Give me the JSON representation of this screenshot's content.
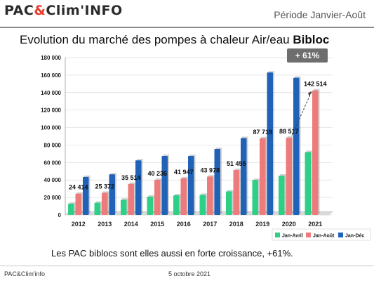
{
  "header": {
    "logo_part1": "PAC",
    "logo_amp": "&",
    "logo_part2": "Clim'INFO",
    "period": "Période Janvier-Août"
  },
  "slide": {
    "title_main": "Evolution du marché des pompes à chaleur Air/eau ",
    "title_bold": "Bibloc",
    "badge": "+ 61%",
    "caption": "Les PAC biblocs sont elles aussi en forte croissance, +61%."
  },
  "footer": {
    "left": "PAC&Clim'info",
    "date": "5 octobre 2021"
  },
  "colors": {
    "jan_avril": "#2ecf86",
    "jan_aout": "#ee7b7b",
    "jan_dec": "#1f62b8",
    "badge_bg": "#6e6e6e"
  },
  "chart_data": {
    "type": "bar",
    "title": "",
    "xlabel": "",
    "ylabel": "",
    "ylim": [
      0,
      180000
    ],
    "y_ticks": [
      "0",
      "20 000",
      "40 000",
      "60 000",
      "80 000",
      "100 000",
      "120 000",
      "140 000",
      "160 000",
      "180 000"
    ],
    "y_tick_values": [
      0,
      20000,
      40000,
      60000,
      80000,
      100000,
      120000,
      140000,
      160000,
      180000
    ],
    "categories": [
      "2012",
      "2013",
      "2014",
      "2015",
      "2016",
      "2017",
      "2018",
      "2019",
      "2020",
      "2021"
    ],
    "series": [
      {
        "name": "Jan-Avril",
        "values": [
          13000,
          14000,
          17500,
          21000,
          22500,
          23000,
          27000,
          40000,
          45000,
          72000
        ]
      },
      {
        "name": "Jan-Août",
        "values": [
          24414,
          25372,
          35514,
          40236,
          41947,
          43978,
          51455,
          87719,
          88517,
          142514
        ]
      },
      {
        "name": "Jan-Déc",
        "values": [
          43500,
          46500,
          62500,
          67500,
          67500,
          75500,
          88000,
          163000,
          157000,
          null
        ]
      }
    ],
    "data_labels": [
      "24 414",
      "25 372",
      "35 514",
      "40 236",
      "41 947",
      "43 978",
      "51 455",
      "87 719",
      "88 517",
      "142 514"
    ],
    "legend": "bottom-right",
    "grid": true
  }
}
